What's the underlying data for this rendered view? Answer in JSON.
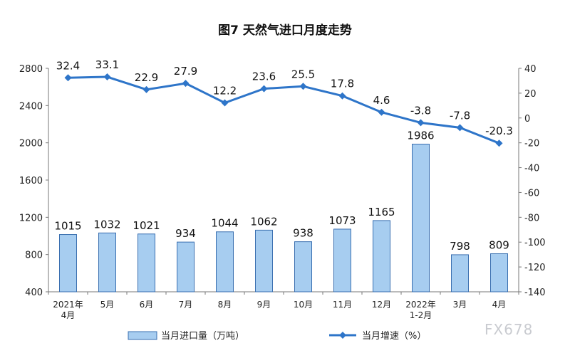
{
  "watermark": "FX678",
  "chart_data": {
    "type": "bar+line",
    "title": "图7 天然气进口月度走势",
    "categories": [
      [
        "2021年",
        "4月"
      ],
      [
        "5月"
      ],
      [
        "6月"
      ],
      [
        "7月"
      ],
      [
        "8月"
      ],
      [
        "9月"
      ],
      [
        "10月"
      ],
      [
        "11月"
      ],
      [
        "12月"
      ],
      [
        "2022年",
        "1-2月"
      ],
      [
        "3月"
      ],
      [
        "4月"
      ]
    ],
    "bar_series": {
      "name": "当月进口量（万吨）",
      "values": [
        1015,
        1032,
        1021,
        934,
        1044,
        1062,
        938,
        1073,
        1165,
        1986,
        798,
        809
      ],
      "color": "#a7cdf0",
      "edge_color": "#3a6fb0"
    },
    "line_series": {
      "name": "当月增速（%）",
      "values": [
        32.4,
        33.1,
        22.9,
        27.9,
        12.2,
        23.6,
        25.5,
        17.8,
        4.6,
        -3.8,
        -7.8,
        -20.3
      ],
      "labels": [
        "32.4",
        "33.1",
        "22.9",
        "27.9",
        "12.2",
        "23.6",
        "25.5",
        "17.8",
        "4.6",
        "-3.8",
        "-7.8",
        "-20.3"
      ],
      "color": "#2e75c9"
    },
    "left_axis": {
      "min": 400,
      "max": 2800,
      "ticks": [
        400,
        800,
        1200,
        1600,
        2000,
        2400,
        2800
      ]
    },
    "right_axis": {
      "min": -140,
      "max": 40,
      "ticks": [
        -140,
        -120,
        -100,
        -80,
        -60,
        -40,
        -20,
        0,
        20,
        40
      ]
    },
    "legend": "bottom",
    "grid": false
  }
}
